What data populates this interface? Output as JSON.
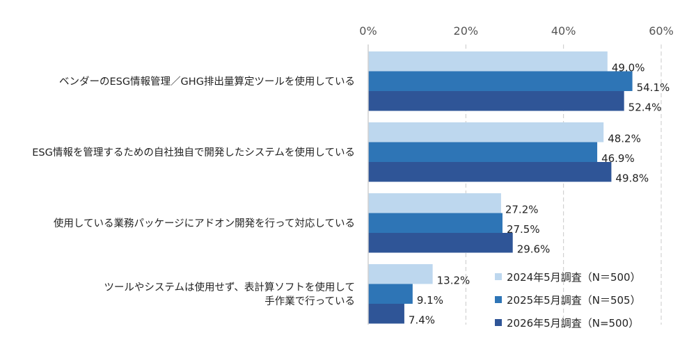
{
  "chart_data": {
    "type": "bar",
    "orientation": "horizontal",
    "categories": [
      [
        "ベンダーのESG情報管理／GHG排出量算定ツールを使用している"
      ],
      [
        "ESG情報を管理するための自社独自で開発したシステムを使用している"
      ],
      [
        "使用している業務パッケージにアドオン開発を行って対応している"
      ],
      [
        "ツールやシステムは使用せず、表計算ソフトを使用して",
        "手作業で行っている"
      ]
    ],
    "series": [
      {
        "name": "2024年5月調査（N＝500）",
        "color": "#bdd7ee",
        "values": [
          49.0,
          48.2,
          27.2,
          13.2
        ],
        "labels": [
          "49.0%",
          "48.2%",
          "27.2%",
          "13.2%"
        ]
      },
      {
        "name": "2025年5月調査（N＝505）",
        "color": "#2e75b6",
        "values": [
          54.1,
          46.9,
          27.5,
          9.1
        ],
        "labels": [
          "54.1%",
          "46.9%",
          "27.5%",
          "9.1%"
        ]
      },
      {
        "name": "2026年5月調査（N=500）",
        "color": "#2f5597",
        "values": [
          52.4,
          49.8,
          29.6,
          7.4
        ],
        "labels": [
          "52.4%",
          "49.8%",
          "29.6%",
          "7.4%"
        ]
      }
    ],
    "xlim": [
      0,
      60
    ],
    "ticks": [
      0,
      20,
      40,
      60
    ],
    "tick_labels": [
      "0%",
      "20%",
      "40%",
      "60%"
    ],
    "grid": "vertical-dashed",
    "legend_position": "bottom-right",
    "title": "",
    "xlabel": "",
    "ylabel": ""
  }
}
